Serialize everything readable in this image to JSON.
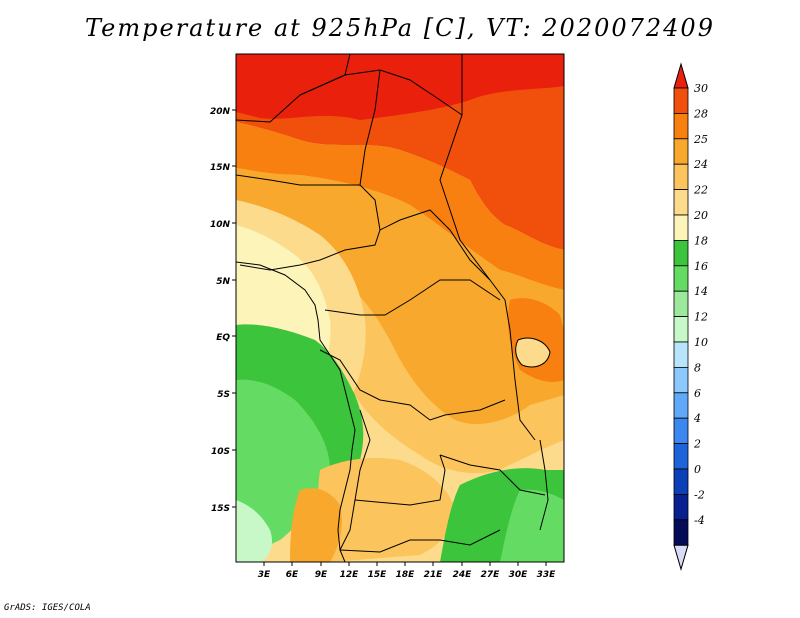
{
  "title": "Temperature at 925hPa [C], VT: 2020072409",
  "credit": "GrADS: IGES/COLA",
  "map": {
    "variable": "Temperature",
    "level": "925hPa",
    "units": "C",
    "valid_time": "2020072409",
    "region": "Central Africa",
    "lon_labels": [
      "3E",
      "6E",
      "9E",
      "12E",
      "15E",
      "18E",
      "21E",
      "24E",
      "27E",
      "30E",
      "33E"
    ],
    "lat_labels": [
      "20N",
      "15N",
      "10N",
      "5N",
      "EQ",
      "5S",
      "10S",
      "15S"
    ]
  },
  "colorbar": {
    "labels": [
      "30",
      "28",
      "25",
      "24",
      "22",
      "20",
      "18",
      "16",
      "14",
      "12",
      "10",
      "8",
      "6",
      "4",
      "2",
      "0",
      "-2",
      "-4"
    ],
    "colors": [
      "#e8200c",
      "#f0500c",
      "#f88010",
      "#f8a82c",
      "#fcc45c",
      "#fcdc8c",
      "#fcf4b8",
      "#3cc43c",
      "#64dc64",
      "#9ce89c",
      "#c8f8c8",
      "#b8e4fc",
      "#8cc8fc",
      "#60a8f8",
      "#3c88f0",
      "#1c64d8",
      "#0c40b8",
      "#082090",
      "#040c58",
      "#d8dcf8"
    ]
  }
}
